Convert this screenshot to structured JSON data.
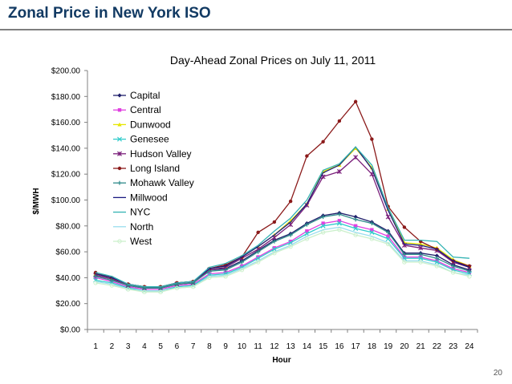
{
  "slide": {
    "title": "Zonal Price in New York ISO",
    "page_number": "20"
  },
  "chart_data": {
    "type": "line",
    "title": "Day-Ahead Zonal Prices on July 11, 2011",
    "xlabel": "Hour",
    "ylabel": "$/MWH",
    "ylim": [
      0,
      200
    ],
    "y_ticks": [
      "$0.00",
      "$20.00",
      "$40.00",
      "$60.00",
      "$80.00",
      "$100.00",
      "$120.00",
      "$140.00",
      "$160.00",
      "$180.00",
      "$200.00"
    ],
    "x": [
      1,
      2,
      3,
      4,
      5,
      6,
      7,
      8,
      9,
      10,
      11,
      12,
      13,
      14,
      15,
      16,
      17,
      18,
      19,
      20,
      21,
      22,
      23,
      24
    ],
    "grid": false,
    "legend_position": "top-left",
    "series": [
      {
        "name": "Capital",
        "color": "#1f1f6b",
        "marker": "diamond",
        "values": [
          42,
          39,
          34,
          32,
          32,
          35,
          36,
          46,
          47,
          53,
          61,
          69,
          74,
          82,
          88,
          90,
          87,
          83,
          76,
          59,
          59,
          57,
          50,
          46
        ]
      },
      {
        "name": "Central",
        "color": "#e040e0",
        "marker": "square",
        "values": [
          40,
          37,
          33,
          31,
          31,
          34,
          35,
          43,
          44,
          49,
          56,
          63,
          68,
          76,
          82,
          84,
          80,
          77,
          72,
          56,
          56,
          53,
          47,
          44
        ]
      },
      {
        "name": "Dunwood",
        "color": "#e6e600",
        "marker": "triangle",
        "values": [
          43,
          40,
          35,
          33,
          33,
          36,
          37,
          47,
          49,
          56,
          64,
          73,
          84,
          97,
          122,
          127,
          140,
          125,
          93,
          67,
          66,
          63,
          54,
          49
        ]
      },
      {
        "name": "Genesee",
        "color": "#33cccc",
        "marker": "x",
        "values": [
          38,
          36,
          32,
          30,
          30,
          33,
          34,
          42,
          43,
          48,
          55,
          62,
          67,
          74,
          80,
          82,
          78,
          75,
          70,
          55,
          55,
          52,
          46,
          43
        ]
      },
      {
        "name": "Hudson Valley",
        "color": "#7a1f7a",
        "marker": "star",
        "values": [
          42,
          39,
          34,
          32,
          32,
          35,
          36,
          46,
          48,
          55,
          62,
          71,
          81,
          96,
          118,
          122,
          133,
          120,
          87,
          65,
          63,
          61,
          52,
          48
        ]
      },
      {
        "name": "Long Island",
        "color": "#8b1a1a",
        "marker": "circle",
        "values": [
          44,
          40,
          35,
          33,
          33,
          36,
          37,
          47,
          50,
          56,
          75,
          83,
          99,
          134,
          145,
          161,
          176,
          147,
          95,
          79,
          68,
          62,
          53,
          49
        ]
      },
      {
        "name": "Mohawk Valley",
        "color": "#2e8b8b",
        "marker": "plus",
        "values": [
          41,
          38,
          34,
          32,
          32,
          35,
          36,
          45,
          46,
          52,
          60,
          68,
          73,
          81,
          87,
          89,
          85,
          82,
          75,
          58,
          58,
          55,
          49,
          45
        ]
      },
      {
        "name": "Millwood",
        "color": "#1a1a80",
        "marker": "none",
        "values": [
          43,
          40,
          35,
          33,
          33,
          36,
          37,
          47,
          49,
          56,
          64,
          73,
          83,
          97,
          121,
          127,
          141,
          124,
          92,
          66,
          65,
          62,
          53,
          48
        ]
      },
      {
        "name": "NYC",
        "color": "#33b3b3",
        "marker": "none",
        "values": [
          44,
          41,
          35,
          33,
          33,
          36,
          37,
          48,
          51,
          57,
          65,
          76,
          86,
          100,
          123,
          128,
          141,
          127,
          94,
          69,
          69,
          68,
          56,
          55
        ]
      },
      {
        "name": "North",
        "color": "#99ddee",
        "marker": "none",
        "values": [
          37,
          35,
          31,
          30,
          30,
          32,
          33,
          41,
          42,
          47,
          53,
          60,
          65,
          72,
          77,
          79,
          75,
          72,
          67,
          53,
          53,
          50,
          44,
          42
        ]
      },
      {
        "name": "West",
        "color": "#ccf0cc",
        "marker": "circle-open",
        "values": [
          36,
          34,
          31,
          29,
          29,
          32,
          33,
          40,
          41,
          46,
          52,
          59,
          64,
          70,
          75,
          77,
          73,
          70,
          66,
          52,
          52,
          49,
          44,
          41
        ]
      }
    ]
  }
}
